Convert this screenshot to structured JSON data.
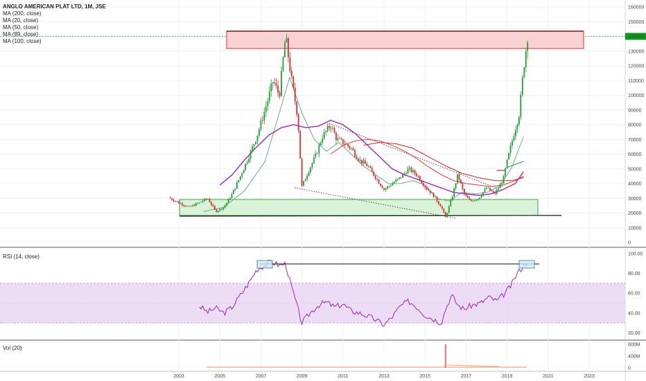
{
  "header": {
    "title": "ANGLO AMERICAN PLAT LTD, 1M, JSE"
  },
  "price_legend": [
    "MA (200, close)",
    "MA (20, close)",
    "MA (50, close)",
    "MA (89, close)",
    "MA (100, close)"
  ],
  "rsi_label": "RSI (14, close)",
  "vol_label": "Vol (20)",
  "colors": {
    "up": "#26a69a",
    "down": "#ef5350",
    "candle_up": "#1e9e33",
    "candle_down": "#d32f2f",
    "ma20": "#6fa88f",
    "ma50": "#e53935",
    "ma89": "#c62828",
    "ma100": "#9c27b0",
    "ma200": "#2e9e2e",
    "rsi": "#9c27b0",
    "rsi_band": "#e9d6f5",
    "box_red": "#f9d3d3",
    "box_green": "#d8f3d8"
  },
  "chart_data": [
    {
      "type": "candlestick",
      "title": "ANGLO AMERICAN PLAT LTD, 1M, JSE",
      "x_ticks": [
        "2003",
        "2005",
        "2007",
        "2009",
        "2011",
        "2013",
        "2015",
        "2017",
        "2019",
        "2021",
        "2023"
      ],
      "y_ticks": [
        "160000",
        "150000",
        "140000",
        "130000",
        "120000",
        "110000",
        "100000",
        "90000",
        "80000",
        "70000",
        "60000",
        "50000",
        "40000",
        "30000",
        "20000",
        "10000",
        "0"
      ],
      "ylim": [
        0,
        160000
      ],
      "xlim": [
        2002.8,
        2024.6
      ],
      "last_price": 140000,
      "price_path": [
        [
          2002.5,
          30500
        ],
        [
          2003.0,
          27000
        ],
        [
          2003.5,
          24000
        ],
        [
          2004.0,
          27000
        ],
        [
          2004.4,
          30000
        ],
        [
          2004.8,
          21000
        ],
        [
          2005.2,
          24000
        ],
        [
          2005.6,
          33000
        ],
        [
          2006.0,
          45000
        ],
        [
          2006.4,
          58000
        ],
        [
          2006.8,
          72000
        ],
        [
          2007.2,
          90000
        ],
        [
          2007.6,
          110000
        ],
        [
          2007.9,
          100000
        ],
        [
          2008.2,
          140000
        ],
        [
          2008.5,
          110000
        ],
        [
          2008.8,
          85000
        ],
        [
          2009.0,
          38000
        ],
        [
          2009.3,
          48000
        ],
        [
          2009.7,
          60000
        ],
        [
          2010.0,
          72000
        ],
        [
          2010.4,
          80000
        ],
        [
          2010.7,
          70000
        ],
        [
          2011.0,
          68000
        ],
        [
          2011.4,
          64000
        ],
        [
          2011.8,
          56000
        ],
        [
          2012.2,
          52000
        ],
        [
          2012.6,
          44000
        ],
        [
          2013.0,
          36000
        ],
        [
          2013.4,
          40000
        ],
        [
          2013.8,
          44000
        ],
        [
          2014.2,
          50000
        ],
        [
          2014.6,
          46000
        ],
        [
          2015.0,
          38000
        ],
        [
          2015.4,
          32000
        ],
        [
          2015.8,
          24000
        ],
        [
          2016.0,
          17000
        ],
        [
          2016.3,
          30000
        ],
        [
          2016.6,
          46000
        ],
        [
          2016.9,
          33000
        ],
        [
          2017.2,
          28000
        ],
        [
          2017.6,
          30000
        ],
        [
          2018.0,
          37000
        ],
        [
          2018.4,
          33000
        ],
        [
          2018.8,
          42000
        ],
        [
          2019.0,
          55000
        ],
        [
          2019.3,
          72000
        ],
        [
          2019.6,
          88000
        ],
        [
          2019.8,
          118000
        ],
        [
          2020.0,
          140000
        ]
      ],
      "series": [
        {
          "name": "MA (20, close)",
          "values": [
            [
              2004.2,
              21000
            ],
            [
              2005.2,
              24000
            ],
            [
              2006.2,
              35000
            ],
            [
              2007.2,
              55000
            ],
            [
              2007.9,
              88000
            ],
            [
              2008.4,
              112000
            ],
            [
              2009.0,
              88000
            ],
            [
              2009.6,
              70000
            ],
            [
              2010.2,
              62000
            ],
            [
              2010.8,
              68000
            ],
            [
              2011.4,
              60000
            ],
            [
              2012.0,
              52000
            ],
            [
              2012.6,
              46000
            ],
            [
              2013.2,
              40000
            ],
            [
              2013.8,
              40000
            ],
            [
              2014.4,
              42000
            ],
            [
              2015.0,
              39000
            ],
            [
              2015.6,
              30000
            ],
            [
              2016.2,
              28000
            ],
            [
              2016.8,
              34000
            ],
            [
              2017.4,
              33000
            ],
            [
              2018.0,
              34000
            ],
            [
              2018.6,
              38000
            ],
            [
              2019.2,
              50000
            ],
            [
              2019.8,
              72000
            ]
          ]
        },
        {
          "name": "MA (50, close)",
          "values": [
            [
              2010.4,
              60000
            ],
            [
              2011.0,
              66000
            ],
            [
              2011.6,
              69000
            ],
            [
              2012.2,
              70000
            ],
            [
              2012.8,
              69000
            ],
            [
              2013.4,
              66000
            ],
            [
              2014.0,
              62000
            ],
            [
              2014.6,
              57000
            ],
            [
              2015.2,
              51000
            ],
            [
              2015.8,
              46000
            ],
            [
              2016.4,
              42000
            ],
            [
              2017.0,
              40000
            ],
            [
              2017.6,
              39000
            ],
            [
              2018.2,
              38000
            ],
            [
              2018.8,
              39000
            ],
            [
              2019.4,
              42000
            ],
            [
              2019.8,
              45000
            ]
          ]
        },
        {
          "name": "MA (89, close)",
          "values": [
            [
              2012.0,
              66000
            ],
            [
              2012.8,
              68000
            ],
            [
              2013.6,
              67000
            ],
            [
              2014.4,
              64000
            ],
            [
              2015.2,
              58000
            ],
            [
              2016.0,
              52000
            ],
            [
              2016.8,
              47000
            ],
            [
              2017.6,
              44000
            ],
            [
              2018.4,
              42000
            ],
            [
              2019.2,
              42000
            ],
            [
              2019.8,
              44000
            ]
          ]
        },
        {
          "name": "MA (100, close)",
          "values": [
            [
              2005.0,
              39000
            ],
            [
              2005.6,
              46000
            ],
            [
              2006.2,
              56000
            ],
            [
              2006.8,
              65000
            ],
            [
              2007.4,
              73000
            ],
            [
              2008.0,
              78000
            ],
            [
              2008.6,
              80000
            ],
            [
              2009.2,
              78000
            ],
            [
              2009.8,
              79000
            ],
            [
              2010.4,
              83000
            ],
            [
              2011.0,
              80000
            ],
            [
              2011.6,
              74000
            ],
            [
              2012.2,
              66000
            ],
            [
              2012.8,
              58000
            ],
            [
              2013.4,
              50000
            ],
            [
              2014.0,
              46000
            ],
            [
              2014.6,
              43000
            ],
            [
              2015.2,
              40000
            ],
            [
              2015.8,
              37000
            ],
            [
              2016.4,
              34000
            ],
            [
              2017.0,
              33000
            ],
            [
              2017.6,
              32000
            ],
            [
              2018.2,
              33000
            ],
            [
              2018.8,
              36000
            ],
            [
              2019.4,
              40000
            ],
            [
              2019.8,
              48000
            ]
          ]
        },
        {
          "name": "MA (200, close)",
          "values": [
            [
              2019.0,
              51000
            ],
            [
              2019.4,
              53000
            ],
            [
              2019.8,
              55000
            ]
          ]
        }
      ]
    },
    {
      "type": "line",
      "title": "RSI (14, close)",
      "y_ticks": [
        "100.00",
        "80.00",
        "60.00",
        "40.00",
        "20.00"
      ],
      "ylim": [
        10,
        100
      ],
      "band": [
        30,
        70
      ],
      "values": [
        [
          2004.0,
          47
        ],
        [
          2004.4,
          41
        ],
        [
          2004.8,
          45
        ],
        [
          2005.2,
          40
        ],
        [
          2005.6,
          46
        ],
        [
          2006.0,
          58
        ],
        [
          2006.4,
          70
        ],
        [
          2006.8,
          84
        ],
        [
          2007.2,
          88
        ],
        [
          2007.5,
          92
        ],
        [
          2007.9,
          88
        ],
        [
          2008.2,
          90
        ],
        [
          2008.5,
          66
        ],
        [
          2009.0,
          30
        ],
        [
          2009.4,
          40
        ],
        [
          2009.8,
          48
        ],
        [
          2010.2,
          51
        ],
        [
          2010.6,
          46
        ],
        [
          2011.0,
          49
        ],
        [
          2011.4,
          42
        ],
        [
          2011.8,
          40
        ],
        [
          2012.2,
          37
        ],
        [
          2012.6,
          33
        ],
        [
          2013.0,
          28
        ],
        [
          2013.4,
          36
        ],
        [
          2013.8,
          47
        ],
        [
          2014.2,
          52
        ],
        [
          2014.6,
          46
        ],
        [
          2015.0,
          38
        ],
        [
          2015.4,
          34
        ],
        [
          2015.8,
          30
        ],
        [
          2016.0,
          44
        ],
        [
          2016.3,
          58
        ],
        [
          2016.6,
          48
        ],
        [
          2016.9,
          44
        ],
        [
          2017.3,
          48
        ],
        [
          2017.7,
          50
        ],
        [
          2018.1,
          56
        ],
        [
          2018.5,
          52
        ],
        [
          2018.9,
          60
        ],
        [
          2019.2,
          68
        ],
        [
          2019.5,
          80
        ],
        [
          2019.8,
          88
        ],
        [
          2020.0,
          91
        ]
      ]
    },
    {
      "type": "bar",
      "title": "Vol (20)",
      "y_ticks": [
        "800M",
        "400M",
        "0"
      ],
      "ylim": [
        0,
        800
      ],
      "spike": {
        "x": 2016.0,
        "value": 800
      }
    }
  ]
}
